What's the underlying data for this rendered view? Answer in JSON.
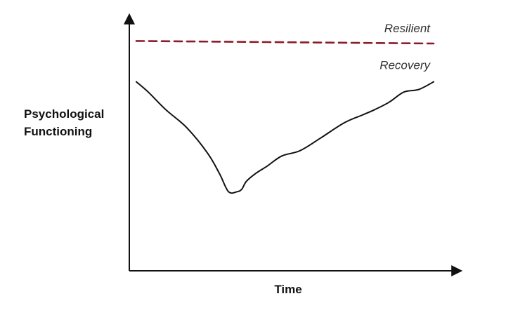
{
  "chart_data": {
    "type": "line",
    "title": "",
    "xlabel": "Time",
    "ylabel_lines": [
      "Psychological",
      "Functioning"
    ],
    "xlim": [
      0,
      100
    ],
    "ylim": [
      0,
      100
    ],
    "grid": false,
    "axis_ticks": false,
    "series": [
      {
        "name": "Resilient",
        "style": "dashed",
        "color": "#8b1a2b",
        "x": [
          0,
          100
        ],
        "y": [
          90,
          89
        ]
      },
      {
        "name": "Recovery",
        "style": "solid",
        "color": "#111111",
        "x": [
          0,
          4,
          10,
          17,
          24,
          28,
          31,
          34,
          35.5,
          37,
          40,
          44,
          49,
          55,
          62,
          70,
          76,
          80,
          85,
          90,
          95,
          100
        ],
        "y": [
          74,
          70,
          63,
          56,
          46,
          38,
          31,
          31,
          32,
          35,
          38,
          41,
          45,
          47,
          52,
          58,
          61,
          63,
          66,
          70,
          71,
          74
        ]
      }
    ]
  }
}
